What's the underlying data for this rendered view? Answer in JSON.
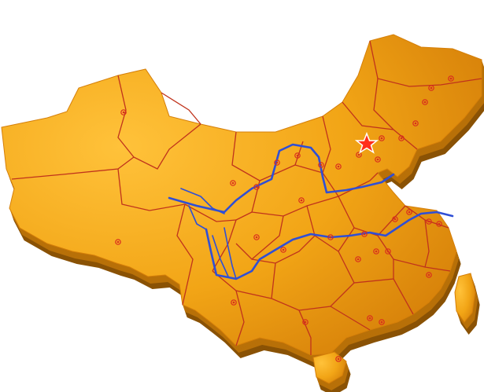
{
  "map": {
    "colors": {
      "background": "#ffffff",
      "land_top": "#f2a516",
      "land_highlight": "#ffc23a",
      "land_shadow": "#d57f09",
      "extrusion": "#b87008",
      "extrusion_dark": "#8a5205",
      "province_border": "#c0331c",
      "river": "#2f4fd6",
      "city_dot": "#d92c1e",
      "capital_star_fill": "#ff2e1a",
      "capital_star_stroke": "#ffffff"
    },
    "city_count": 34
  }
}
